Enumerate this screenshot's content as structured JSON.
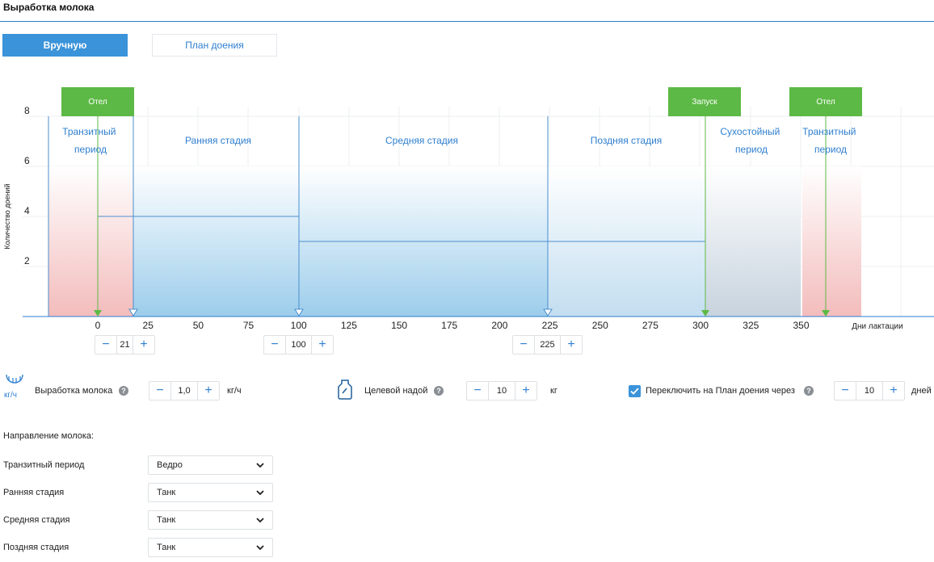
{
  "page": {
    "title": "Выработка молока"
  },
  "tabs": {
    "manual": "Вручную",
    "plan": "План доения"
  },
  "colors": {
    "accent": "#3b93d9",
    "green": "#5db946",
    "red": "#f3bcbc",
    "blue": "#9ccdeb"
  },
  "chart_data": {
    "type": "area",
    "ylabel": "Количество доений",
    "xlabel": "Дни лактации",
    "ylim": [
      0,
      8
    ],
    "y_ticks": [
      "2",
      "4",
      "6",
      "8"
    ],
    "x_ticks": [
      "0",
      "25",
      "50",
      "75",
      "100",
      "125",
      "150",
      "175",
      "200",
      "225",
      "250",
      "275",
      "300",
      "325",
      "350"
    ],
    "stages": [
      "Транзитный период",
      "Ранняя стадия",
      "Средняя стадия",
      "Поздняя стадия",
      "Сухостойный период",
      "Транзитный период"
    ],
    "flags": [
      "Отел",
      "Запуск",
      "Отел"
    ],
    "milkings_levels": [
      {
        "from_day": 0,
        "to_day": 100,
        "value": 4
      },
      {
        "from_day": 100,
        "to_day": 305,
        "value": 3
      }
    ]
  },
  "steppers": {
    "transit_end": "21",
    "early_end": "100",
    "middle_end": "225",
    "minus": "−",
    "plus": "+"
  },
  "params": {
    "milk_rate_icon_unit": "кг/ч",
    "milk_rate_label": "Выработка молока",
    "milk_rate_value": "1,0",
    "milk_rate_unit": "кг/ч",
    "target_yield_label": "Целевой надой",
    "target_yield_value": "10",
    "target_yield_unit": "кг",
    "switch_label": "Переключить на План доения через",
    "switch_value": "10",
    "switch_unit": "дней",
    "help": "?"
  },
  "direction": {
    "title": "Направление молока:",
    "rows": [
      {
        "label": "Транзитный период",
        "value": "Ведро"
      },
      {
        "label": "Ранняя стадия",
        "value": "Танк"
      },
      {
        "label": "Средняя  стадия",
        "value": "Танк"
      },
      {
        "label": "Поздняя  стадия",
        "value": "Танк"
      }
    ]
  }
}
